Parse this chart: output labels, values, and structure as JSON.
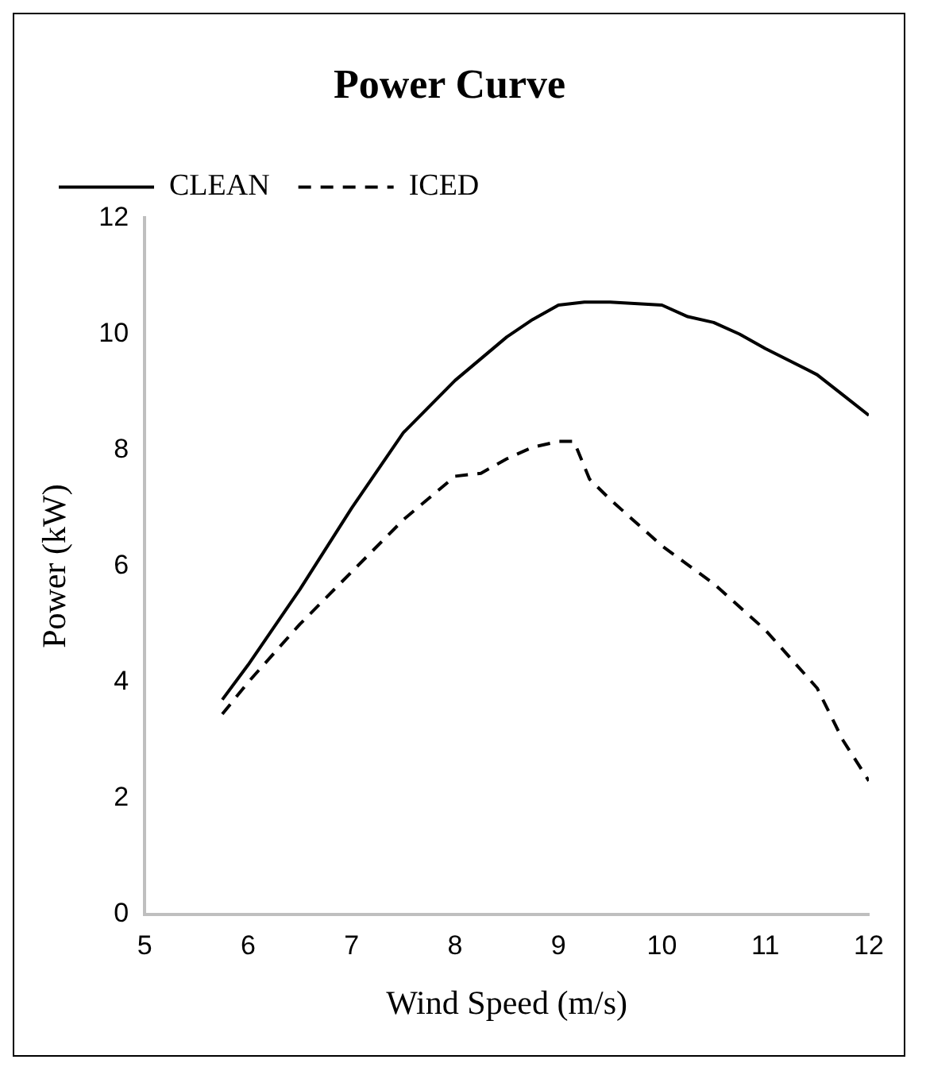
{
  "chart_data": {
    "type": "line",
    "title": "Power Curve",
    "xlabel": "Wind Speed (m/s)",
    "ylabel": "Power (kW)",
    "x": [
      5.75,
      6,
      6.5,
      7,
      7.5,
      8,
      8.5,
      8.75,
      9,
      9.25,
      9.5,
      10,
      10.25,
      10.5,
      10.75,
      11,
      11.5,
      11.75,
      12
    ],
    "series": [
      {
        "name": "CLEAN",
        "color": "#000000",
        "line_style": "solid",
        "values": [
          3.7,
          4.3,
          5.6,
          7.0,
          8.3,
          9.2,
          9.95,
          10.25,
          10.5,
          10.55,
          10.55,
          10.5,
          10.3,
          10.2,
          10.0,
          9.75,
          9.3,
          8.95,
          8.6
        ]
      },
      {
        "name": "ICED",
        "color": "#000000",
        "line_style": "dashed",
        "x": [
          5.75,
          6,
          6.5,
          7,
          7.5,
          8,
          8.25,
          8.5,
          8.75,
          9,
          9.15,
          9.3,
          9.5,
          10,
          10.5,
          11,
          11.5,
          11.75,
          12
        ],
        "values": [
          3.45,
          4.0,
          5.0,
          5.9,
          6.8,
          7.55,
          7.6,
          7.85,
          8.05,
          8.15,
          8.15,
          7.5,
          7.15,
          6.35,
          5.7,
          4.9,
          3.9,
          3.0,
          2.3
        ]
      }
    ],
    "xlim": [
      5,
      12
    ],
    "xticks": [
      5,
      6,
      7,
      8,
      9,
      10,
      11,
      12
    ],
    "ylim": [
      0,
      12
    ],
    "yticks": [
      0,
      2,
      4,
      6,
      8,
      10,
      12
    ],
    "grid": false,
    "legend": "top left",
    "marker": "none"
  }
}
